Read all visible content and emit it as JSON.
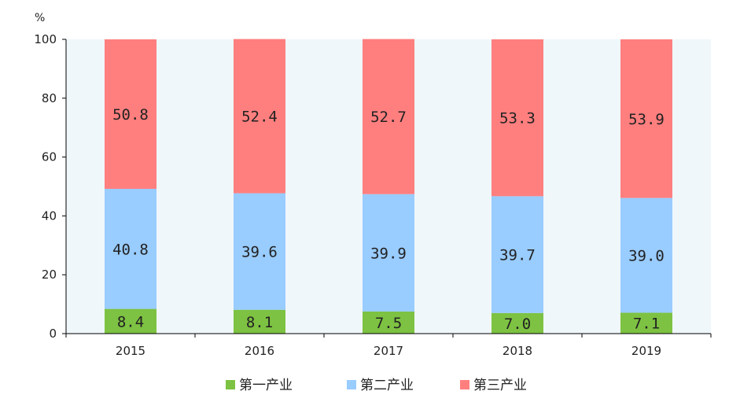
{
  "chart_data": {
    "type": "bar",
    "stacked": true,
    "unit": "%",
    "categories": [
      "2015",
      "2016",
      "2017",
      "2018",
      "2019"
    ],
    "series": [
      {
        "name": "第一产业",
        "values": [
          8.4,
          8.1,
          7.5,
          7.0,
          7.1
        ],
        "labels": [
          "8.4",
          "8.1",
          "7.5",
          "7.0",
          "7.1"
        ],
        "color": "#7dc242"
      },
      {
        "name": "第二产业",
        "values": [
          40.8,
          39.6,
          39.9,
          39.7,
          39.0
        ],
        "labels": [
          "40.8",
          "39.6",
          "39.9",
          "39.7",
          "39.0"
        ],
        "color": "#99ccff"
      },
      {
        "name": "第三产业",
        "values": [
          50.8,
          52.4,
          52.7,
          53.3,
          53.9
        ],
        "labels": [
          "50.8",
          "52.4",
          "52.7",
          "53.3",
          "53.9"
        ],
        "color": "#ff7f7f"
      }
    ],
    "ylim": [
      0,
      100
    ],
    "yticks": [
      "0",
      "20",
      "40",
      "60",
      "80",
      "100"
    ],
    "legend_position": "bottom",
    "plot_background": "#eff7fb"
  }
}
